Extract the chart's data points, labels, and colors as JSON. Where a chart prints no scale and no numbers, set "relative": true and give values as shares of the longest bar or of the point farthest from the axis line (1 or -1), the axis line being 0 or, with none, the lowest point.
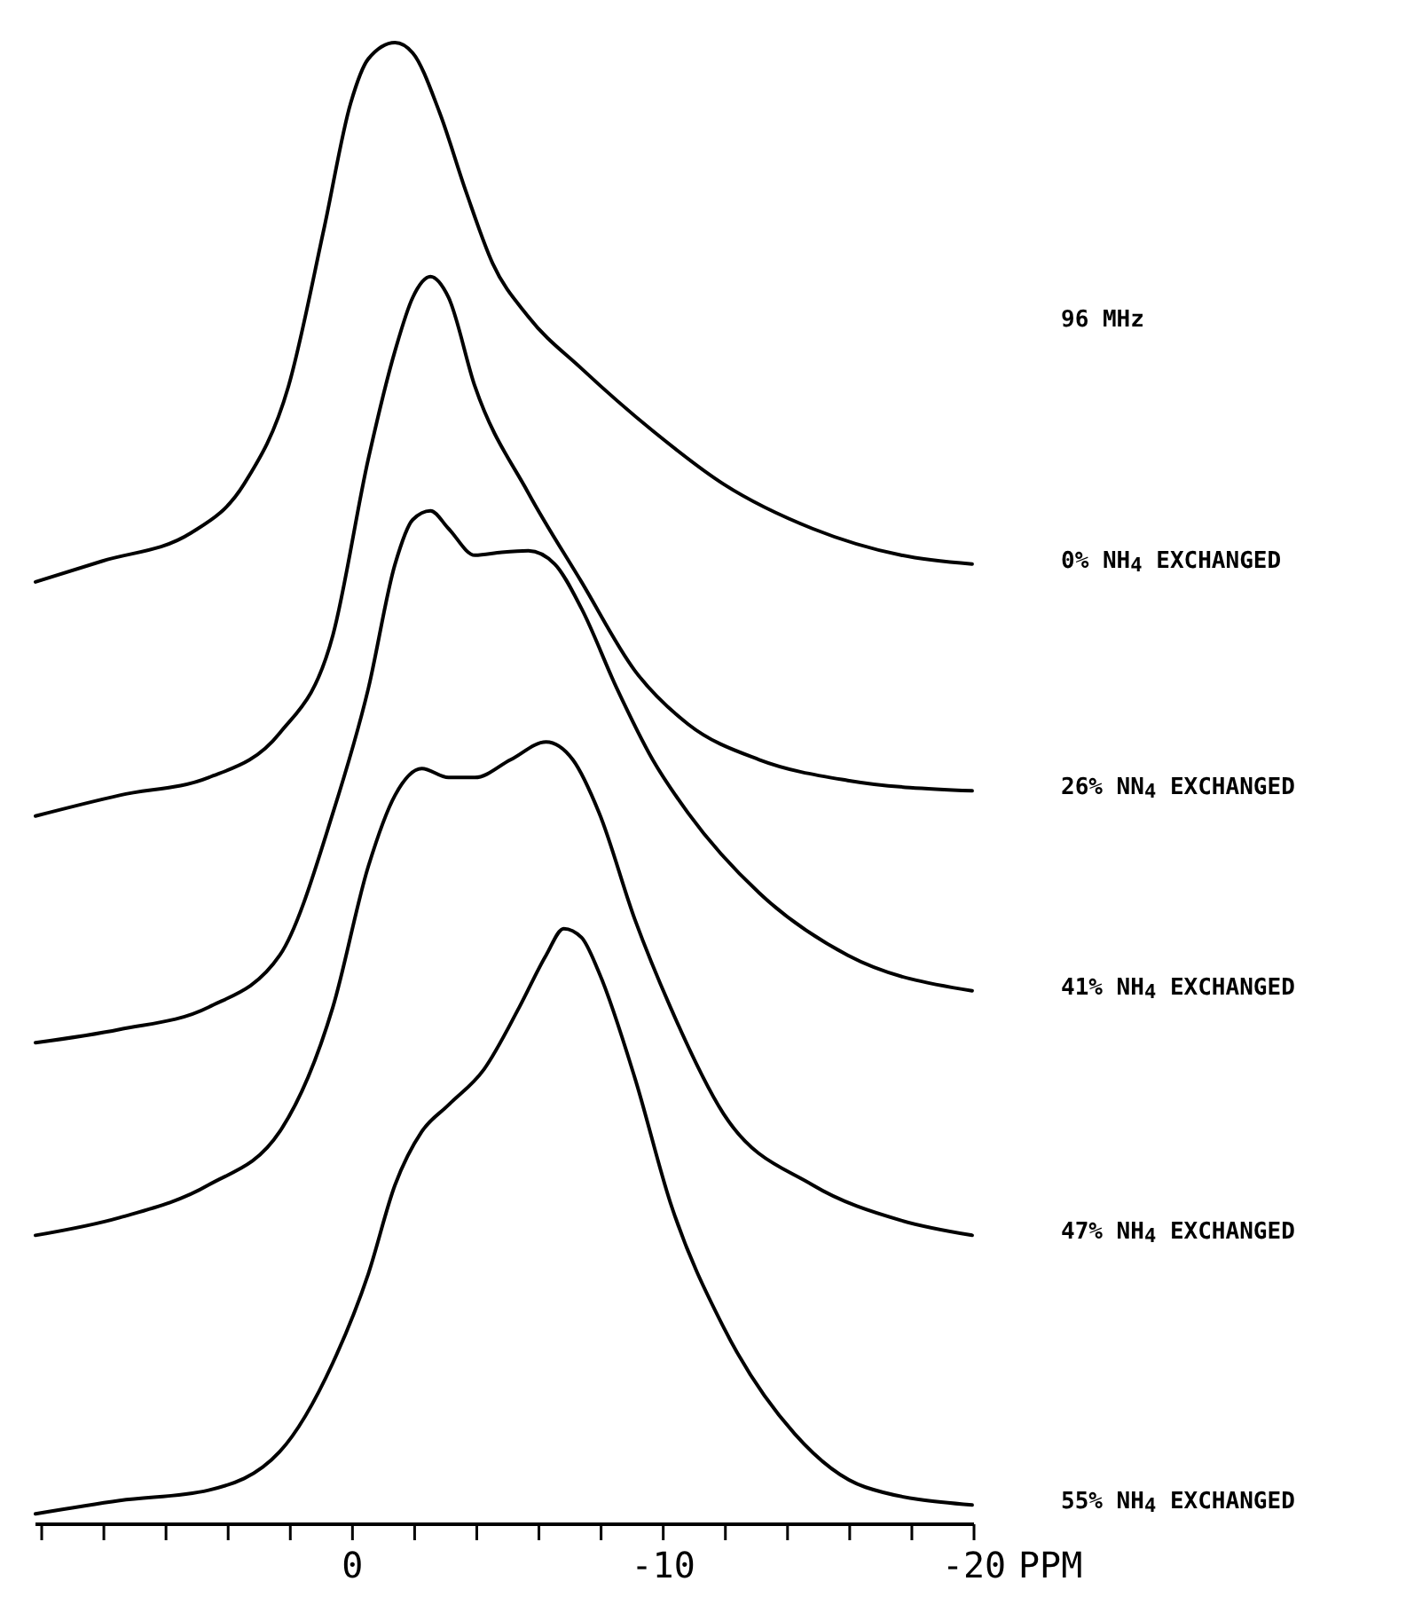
{
  "chart_data": {
    "type": "line",
    "relative": true,
    "xlabel": "PPM",
    "annotations": [
      "96 MHz"
    ],
    "xlim": [
      10.2,
      -20
    ],
    "xticks": [
      {
        "value": 10,
        "label": null
      },
      {
        "value": 8,
        "label": null
      },
      {
        "value": 6,
        "label": null
      },
      {
        "value": 4,
        "label": null
      },
      {
        "value": 2,
        "label": null
      },
      0,
      {
        "value": -2,
        "label": null
      },
      {
        "value": -4,
        "label": null
      },
      {
        "value": -6,
        "label": null
      },
      {
        "value": -8,
        "label": null
      },
      -10,
      {
        "value": -12,
        "label": null
      },
      {
        "value": -14,
        "label": null
      },
      {
        "value": -16,
        "label": null
      },
      {
        "value": -18,
        "label": null
      },
      -20
    ],
    "grid": false,
    "marker": "none",
    "line_style": "solid",
    "series": [
      {
        "name": "0% NH$_{4}$ EXCHANGED",
        "color": "#000000",
        "x": [
          10.2,
          8.06,
          5.2,
          3.49,
          2.06,
          0.91,
          0.06,
          -0.51,
          -1.37,
          -1.94,
          -2.8,
          -3.66,
          -4.51,
          -5.66,
          -7.37,
          -9.66,
          -11.94,
          -14.8,
          -17.66,
          -19.94
        ],
        "values": [
          0.636,
          0.65,
          0.669,
          0.702,
          0.768,
          0.875,
          0.959,
          0.989,
          1.0,
          0.993,
          0.953,
          0.899,
          0.851,
          0.815,
          0.78,
          0.738,
          0.702,
          0.672,
          0.654,
          0.648
        ]
      },
      {
        "name": "26% NN$_{4}$ EXCHANGED",
        "color": "#000000",
        "x": [
          10.2,
          7.49,
          4.63,
          2.34,
          0.63,
          -0.51,
          -1.37,
          -1.94,
          -2.51,
          -3.09,
          -3.94,
          -5.66,
          -7.37,
          -9.09,
          -10.8,
          -13.09,
          -15.94,
          -19.94
        ],
        "values": [
          0.478,
          0.492,
          0.504,
          0.534,
          0.6,
          0.719,
          0.792,
          0.828,
          0.842,
          0.828,
          0.768,
          0.696,
          0.636,
          0.576,
          0.54,
          0.516,
          0.502,
          0.495
        ]
      },
      {
        "name": "41% NH$_{4}$ EXCHANGED",
        "color": "#000000",
        "x": [
          10.2,
          7.49,
          4.63,
          2.34,
          0.63,
          -0.51,
          -1.37,
          -1.94,
          -2.51,
          -3.09,
          -3.94,
          -4.8,
          -5.66,
          -6.51,
          -7.37,
          -8.51,
          -9.66,
          -10.8,
          -13.09,
          -15.94,
          -19.94
        ],
        "values": [
          0.325,
          0.334,
          0.349,
          0.384,
          0.48,
          0.564,
          0.648,
          0.678,
          0.684,
          0.672,
          0.654,
          0.656,
          0.657,
          0.648,
          0.618,
          0.564,
          0.516,
          0.48,
          0.426,
          0.384,
          0.36
        ]
      },
      {
        "name": "47% NH$_{4}$ EXCHANGED",
        "color": "#000000",
        "x": [
          10.2,
          7.49,
          4.63,
          2.34,
          0.63,
          -0.51,
          -1.37,
          -2.23,
          -3.09,
          -3.94,
          -5.09,
          -6.23,
          -7.09,
          -7.94,
          -9.09,
          -10.23,
          -11.94,
          -14.8,
          -17.66,
          -19.94
        ],
        "values": [
          0.195,
          0.207,
          0.229,
          0.265,
          0.349,
          0.444,
          0.492,
          0.51,
          0.504,
          0.504,
          0.516,
          0.528,
          0.516,
          0.48,
          0.408,
          0.349,
          0.277,
          0.229,
          0.205,
          0.195
        ]
      },
      {
        "name": "55% NH$_{4}$ EXCHANGED",
        "color": "#000000",
        "x": [
          10.2,
          7.49,
          4.63,
          2.34,
          0.63,
          -0.51,
          -1.37,
          -2.23,
          -3.09,
          -4.23,
          -5.37,
          -6.23,
          -6.8,
          -7.37,
          -7.94,
          -9.09,
          -10.23,
          -11.94,
          -14.23,
          -16.51,
          -19.94
        ],
        "values": [
          0.007,
          0.016,
          0.023,
          0.049,
          0.109,
          0.169,
          0.229,
          0.265,
          0.283,
          0.307,
          0.349,
          0.384,
          0.402,
          0.396,
          0.372,
          0.301,
          0.217,
          0.133,
          0.061,
          0.025,
          0.013
        ]
      }
    ]
  }
}
